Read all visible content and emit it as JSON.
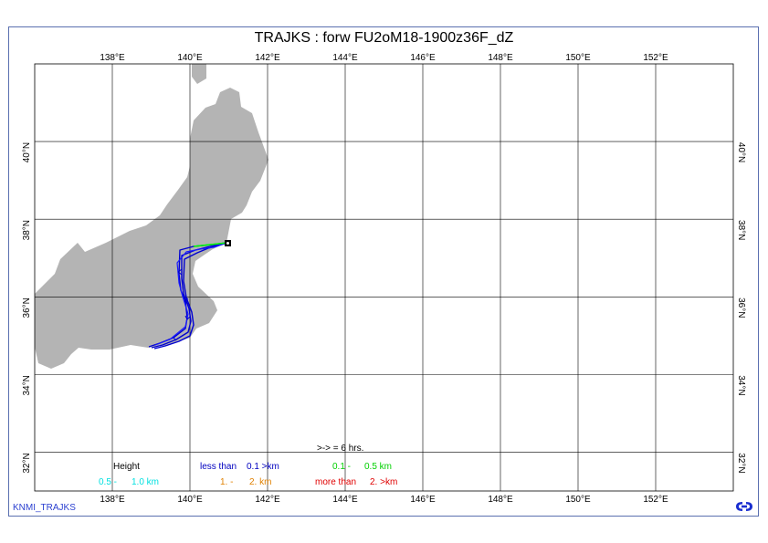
{
  "title": "TRAJKS : forw FU2oM18-1900z36F_dZ",
  "footer_label": "KNMI_TRAJKS",
  "map": {
    "lon_range": [
      136.0,
      154.0
    ],
    "lat_range": [
      31.0,
      42.0
    ],
    "lon_ticks": [
      "138°E",
      "140°E",
      "142°E",
      "144°E",
      "146°E",
      "148°E",
      "150°E",
      "152°E"
    ],
    "lat_ticks": [
      "32°N",
      "34°N",
      "36°N",
      "38°N",
      "40°N"
    ],
    "start_point": {
      "lon": 141.0,
      "lat": 37.4
    },
    "land_color": "#b4b4b4",
    "trajectory_color": "#0000d0",
    "start_segment_color": "#00ff00"
  },
  "legend": {
    "interval_note": ">-> = 6 hrs.",
    "height_label": "Height",
    "classes": [
      {
        "label": "less than",
        "value": "0.1 >km",
        "color": "#0000c0"
      },
      {
        "label": "0.1 -",
        "value": "0.5 km",
        "color": "#00d000"
      },
      {
        "label": "0.5 -",
        "value": "1.0 km",
        "color": "#00e0e0"
      },
      {
        "label": "1. -",
        "value": "2. km",
        "color": "#e08000"
      },
      {
        "label": "more than",
        "value": "2. >km",
        "color": "#e00000"
      }
    ]
  }
}
